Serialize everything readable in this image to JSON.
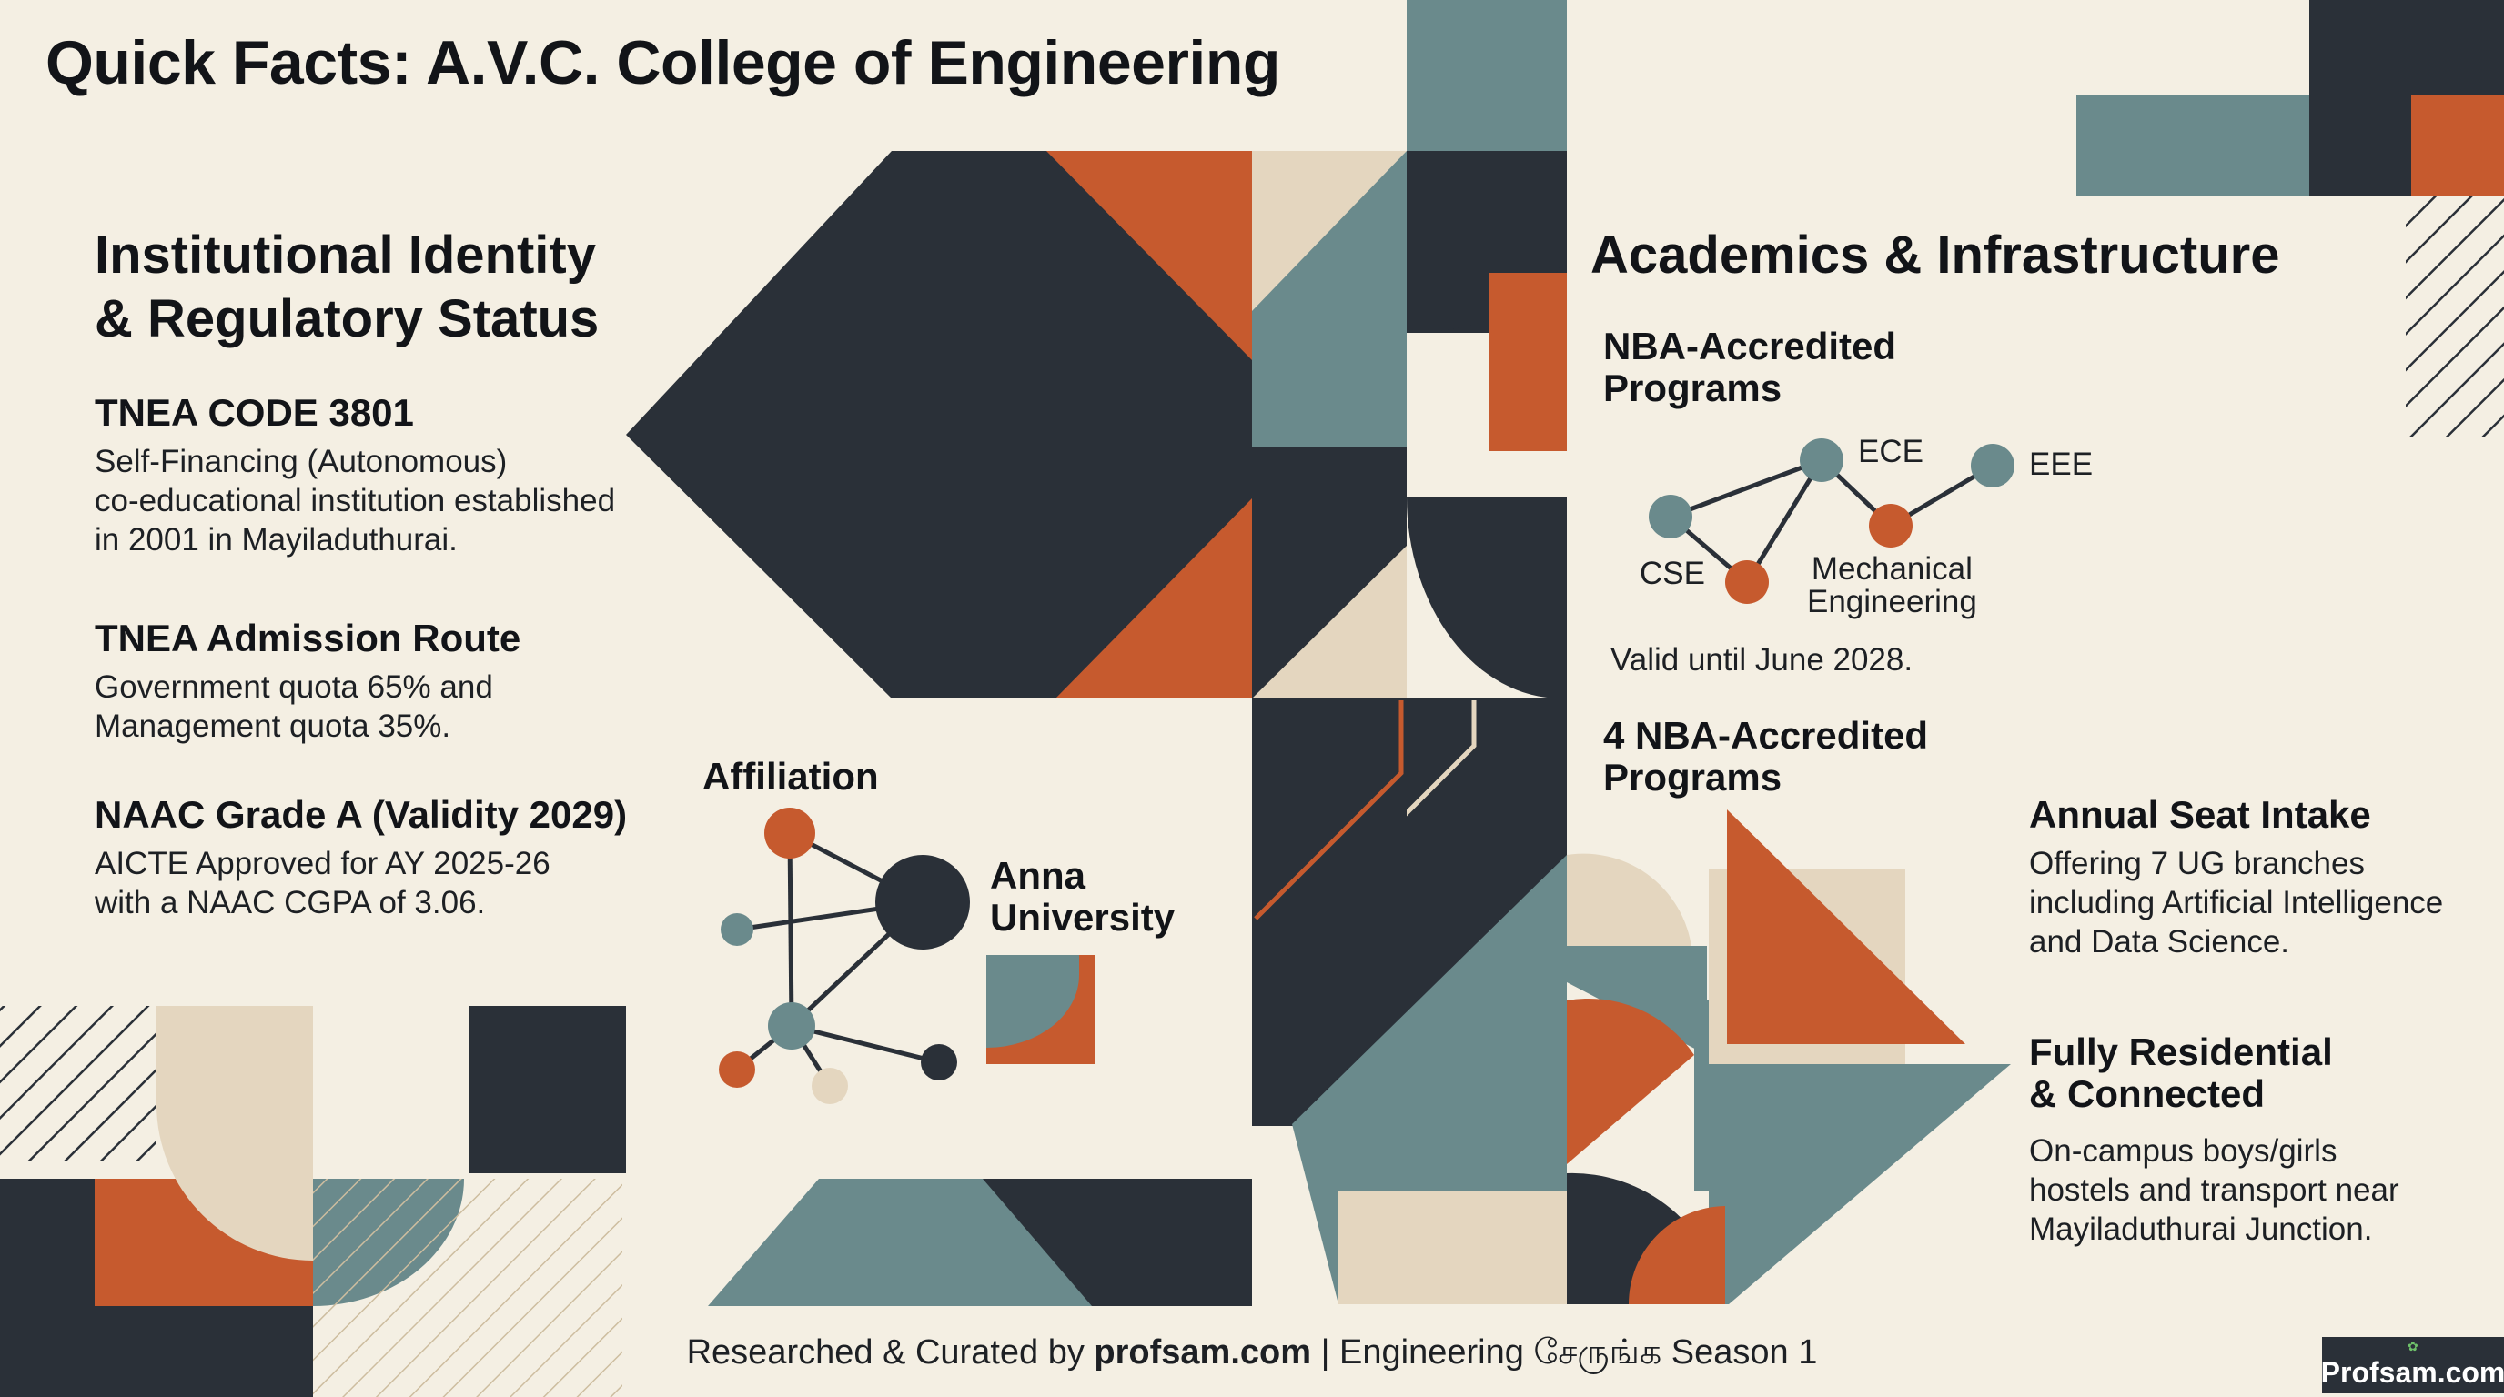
{
  "title": "Quick Facts: A.V.C. College of Engineering",
  "left": {
    "heading_line1": "Institutional Identity",
    "heading_line2": "& Regulatory Status",
    "facts": [
      {
        "title": "TNEA CODE 3801",
        "lines": [
          "Self-Financing (Autonomous)",
          "co-educational institution established",
          "in 2001 in Mayiladuthurai."
        ]
      },
      {
        "title": "TNEA Admission Route",
        "lines": [
          "Government quota 65% and",
          "Management quota 35%."
        ]
      },
      {
        "title": "NAAC Grade A (Validity 2029)",
        "lines": [
          "AICTE Approved for AY 2025-26",
          "with a NAAC CGPA of 3.06."
        ]
      }
    ]
  },
  "affiliation": {
    "heading": "Affiliation",
    "university_line1": "Anna",
    "university_line2": "University"
  },
  "right": {
    "heading": "Academics & Infrastructure",
    "nba": {
      "heading_line1": "NBA-Accredited",
      "heading_line2": "Programs",
      "programs": {
        "cse": "CSE",
        "ece": "ECE",
        "eee": "EEE",
        "mech_line1": "Mechanical",
        "mech_line2": "Engineering"
      },
      "validity": "Valid until June 2028."
    },
    "nba_count": {
      "line1": "4 NBA-Accredited",
      "line2": "Programs"
    },
    "intake": {
      "title": "Annual Seat Intake",
      "lines": [
        "Offering 7 UG branches",
        "including Artificial Intelligence",
        "and Data Science."
      ]
    },
    "residential": {
      "title_line1": "Fully Residential",
      "title_line2": "& Connected",
      "lines": [
        "On-campus boys/girls",
        "hostels and transport near",
        "Mayiladuthurai Junction."
      ]
    }
  },
  "footer": {
    "prefix": "Researched & Curated by ",
    "brand": "profsam.com",
    "suffix": " | Engineering சேருங்க Season 1"
  },
  "watermark": "Profsam.com",
  "colors": {
    "background": "#f4efe3",
    "navy": "#2a3038",
    "orange": "#c65a2e",
    "teal": "#6a8a8c",
    "beige": "#e4d6bf"
  }
}
